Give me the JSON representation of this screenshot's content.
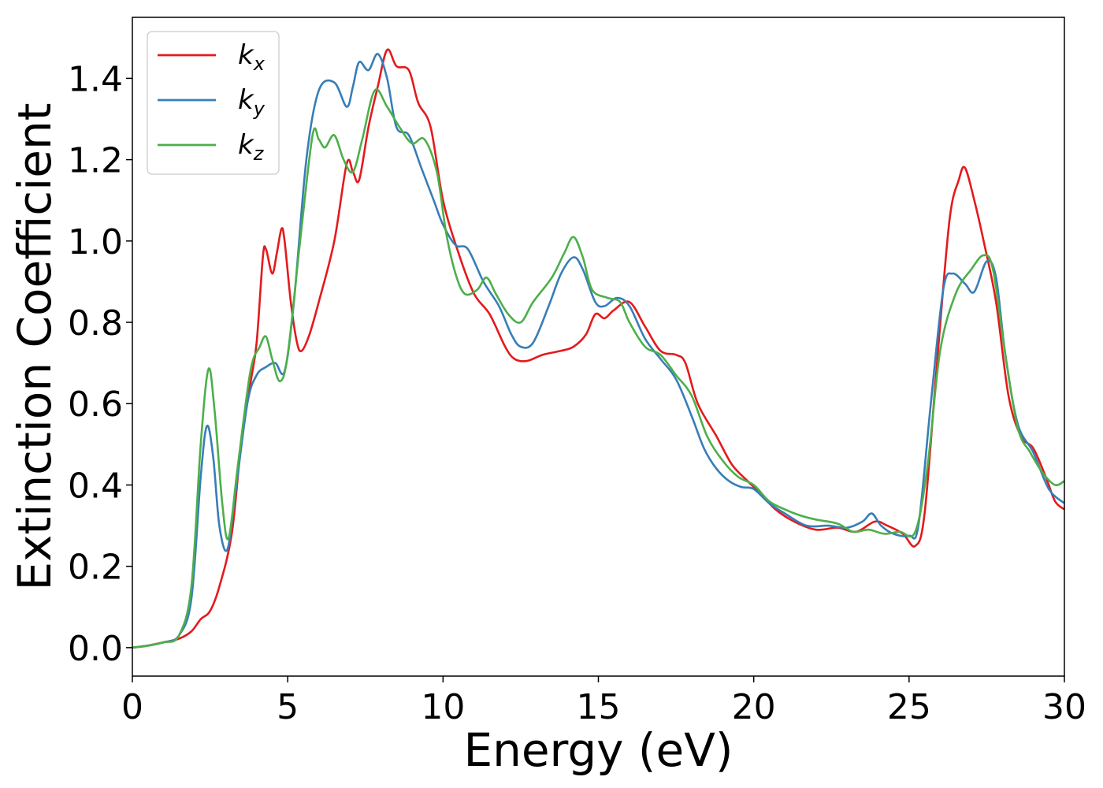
{
  "chart_data": {
    "type": "line",
    "xlabel": "Energy (eV)",
    "ylabel": "Extinction Coefficient",
    "xlim": [
      0,
      30
    ],
    "ylim": [
      -0.07,
      1.55
    ],
    "xticks": [
      "0",
      "5",
      "10",
      "15",
      "20",
      "25",
      "30"
    ],
    "yticks": [
      "0.0",
      "0.2",
      "0.4",
      "0.6",
      "0.8",
      "1.0",
      "1.2",
      "1.4"
    ],
    "grid": false,
    "legend_position": "top-left",
    "series": [
      {
        "name": "k",
        "subscript": "x",
        "color": "#e41a1c",
        "points": [
          [
            0,
            0
          ],
          [
            0.5,
            0.005
          ],
          [
            1,
            0.013
          ],
          [
            1.5,
            0.022
          ],
          [
            1.9,
            0.04
          ],
          [
            2.2,
            0.07
          ],
          [
            2.5,
            0.09
          ],
          [
            2.8,
            0.15
          ],
          [
            3.2,
            0.28
          ],
          [
            3.5,
            0.5
          ],
          [
            3.8,
            0.65
          ],
          [
            4,
            0.75
          ],
          [
            4.2,
            0.96
          ],
          [
            4.3,
            0.98
          ],
          [
            4.5,
            0.92
          ],
          [
            4.65,
            0.97
          ],
          [
            4.8,
            1.03
          ],
          [
            4.9,
            1.0
          ],
          [
            5.1,
            0.85
          ],
          [
            5.3,
            0.75
          ],
          [
            5.45,
            0.73
          ],
          [
            5.7,
            0.77
          ],
          [
            6,
            0.85
          ],
          [
            6.5,
            1.0
          ],
          [
            6.9,
            1.19
          ],
          [
            7.1,
            1.17
          ],
          [
            7.3,
            1.15
          ],
          [
            7.6,
            1.28
          ],
          [
            7.9,
            1.38
          ],
          [
            8.2,
            1.47
          ],
          [
            8.5,
            1.43
          ],
          [
            8.9,
            1.42
          ],
          [
            9.2,
            1.34
          ],
          [
            9.6,
            1.28
          ],
          [
            10,
            1.1
          ],
          [
            10.5,
            0.97
          ],
          [
            11,
            0.87
          ],
          [
            11.5,
            0.82
          ],
          [
            12,
            0.74
          ],
          [
            12.3,
            0.71
          ],
          [
            12.7,
            0.705
          ],
          [
            13.2,
            0.72
          ],
          [
            13.8,
            0.73
          ],
          [
            14.2,
            0.74
          ],
          [
            14.6,
            0.77
          ],
          [
            14.9,
            0.82
          ],
          [
            15.2,
            0.81
          ],
          [
            15.5,
            0.83
          ],
          [
            16,
            0.85
          ],
          [
            16.5,
            0.79
          ],
          [
            17,
            0.73
          ],
          [
            17.5,
            0.72
          ],
          [
            17.8,
            0.7
          ],
          [
            18.2,
            0.6
          ],
          [
            18.8,
            0.52
          ],
          [
            19.3,
            0.45
          ],
          [
            19.8,
            0.41
          ],
          [
            20.2,
            0.38
          ],
          [
            20.7,
            0.34
          ],
          [
            21.3,
            0.31
          ],
          [
            22,
            0.29
          ],
          [
            22.7,
            0.295
          ],
          [
            23.3,
            0.285
          ],
          [
            23.9,
            0.31
          ],
          [
            24.3,
            0.3
          ],
          [
            24.8,
            0.28
          ],
          [
            25.2,
            0.25
          ],
          [
            25.5,
            0.33
          ],
          [
            25.9,
            0.7
          ],
          [
            26.3,
            1.05
          ],
          [
            26.6,
            1.15
          ],
          [
            26.8,
            1.18
          ],
          [
            27.1,
            1.1
          ],
          [
            27.4,
            1.0
          ],
          [
            27.8,
            0.85
          ],
          [
            28.2,
            0.62
          ],
          [
            28.6,
            0.52
          ],
          [
            29,
            0.49
          ],
          [
            29.4,
            0.42
          ],
          [
            29.7,
            0.36
          ],
          [
            30,
            0.34
          ]
        ]
      },
      {
        "name": "k",
        "subscript": "y",
        "color": "#377eb8",
        "points": [
          [
            0,
            0
          ],
          [
            0.5,
            0.005
          ],
          [
            1,
            0.013
          ],
          [
            1.5,
            0.03
          ],
          [
            1.9,
            0.12
          ],
          [
            2.2,
            0.42
          ],
          [
            2.4,
            0.545
          ],
          [
            2.6,
            0.47
          ],
          [
            2.8,
            0.3
          ],
          [
            3.05,
            0.24
          ],
          [
            3.3,
            0.37
          ],
          [
            3.7,
            0.6
          ],
          [
            4,
            0.67
          ],
          [
            4.3,
            0.69
          ],
          [
            4.6,
            0.7
          ],
          [
            4.9,
            0.68
          ],
          [
            5.2,
            0.85
          ],
          [
            5.6,
            1.2
          ],
          [
            6,
            1.37
          ],
          [
            6.5,
            1.39
          ],
          [
            6.9,
            1.33
          ],
          [
            7.1,
            1.38
          ],
          [
            7.3,
            1.44
          ],
          [
            7.6,
            1.42
          ],
          [
            7.9,
            1.46
          ],
          [
            8.2,
            1.4
          ],
          [
            8.5,
            1.28
          ],
          [
            8.9,
            1.26
          ],
          [
            9.3,
            1.18
          ],
          [
            9.7,
            1.1
          ],
          [
            10,
            1.04
          ],
          [
            10.4,
            0.99
          ],
          [
            10.8,
            0.98
          ],
          [
            11.3,
            0.9
          ],
          [
            11.8,
            0.84
          ],
          [
            12.2,
            0.77
          ],
          [
            12.5,
            0.74
          ],
          [
            12.9,
            0.75
          ],
          [
            13.4,
            0.84
          ],
          [
            13.8,
            0.92
          ],
          [
            14.2,
            0.96
          ],
          [
            14.5,
            0.93
          ],
          [
            14.9,
            0.85
          ],
          [
            15.2,
            0.84
          ],
          [
            15.6,
            0.86
          ],
          [
            16,
            0.84
          ],
          [
            16.5,
            0.76
          ],
          [
            17,
            0.71
          ],
          [
            17.5,
            0.66
          ],
          [
            18,
            0.57
          ],
          [
            18.4,
            0.49
          ],
          [
            18.8,
            0.44
          ],
          [
            19.2,
            0.41
          ],
          [
            19.6,
            0.395
          ],
          [
            20,
            0.39
          ],
          [
            20.5,
            0.355
          ],
          [
            21,
            0.33
          ],
          [
            21.7,
            0.3
          ],
          [
            22.4,
            0.3
          ],
          [
            23,
            0.295
          ],
          [
            23.5,
            0.31
          ],
          [
            23.8,
            0.33
          ],
          [
            24.1,
            0.3
          ],
          [
            24.5,
            0.28
          ],
          [
            25,
            0.275
          ],
          [
            25.3,
            0.3
          ],
          [
            25.7,
            0.6
          ],
          [
            26.1,
            0.88
          ],
          [
            26.4,
            0.92
          ],
          [
            26.8,
            0.895
          ],
          [
            27.1,
            0.875
          ],
          [
            27.5,
            0.95
          ],
          [
            27.8,
            0.91
          ],
          [
            28.1,
            0.72
          ],
          [
            28.5,
            0.55
          ],
          [
            29,
            0.48
          ],
          [
            29.5,
            0.39
          ],
          [
            30,
            0.355
          ]
        ]
      },
      {
        "name": "k",
        "subscript": "z",
        "color": "#4daf4a",
        "points": [
          [
            0,
            0
          ],
          [
            0.5,
            0.005
          ],
          [
            1,
            0.013
          ],
          [
            1.5,
            0.03
          ],
          [
            1.9,
            0.15
          ],
          [
            2.2,
            0.5
          ],
          [
            2.45,
            0.685
          ],
          [
            2.65,
            0.58
          ],
          [
            2.9,
            0.35
          ],
          [
            3.1,
            0.27
          ],
          [
            3.4,
            0.45
          ],
          [
            3.8,
            0.68
          ],
          [
            4.1,
            0.74
          ],
          [
            4.3,
            0.765
          ],
          [
            4.5,
            0.71
          ],
          [
            4.75,
            0.655
          ],
          [
            5,
            0.72
          ],
          [
            5.4,
            1.0
          ],
          [
            5.8,
            1.26
          ],
          [
            6,
            1.25
          ],
          [
            6.2,
            1.23
          ],
          [
            6.5,
            1.26
          ],
          [
            6.8,
            1.2
          ],
          [
            7.1,
            1.17
          ],
          [
            7.4,
            1.25
          ],
          [
            7.8,
            1.37
          ],
          [
            8.2,
            1.33
          ],
          [
            8.6,
            1.28
          ],
          [
            9,
            1.24
          ],
          [
            9.4,
            1.25
          ],
          [
            9.8,
            1.17
          ],
          [
            10.1,
            1.02
          ],
          [
            10.4,
            0.92
          ],
          [
            10.7,
            0.87
          ],
          [
            11.1,
            0.88
          ],
          [
            11.4,
            0.91
          ],
          [
            11.7,
            0.87
          ],
          [
            12.1,
            0.82
          ],
          [
            12.5,
            0.8
          ],
          [
            12.9,
            0.85
          ],
          [
            13.5,
            0.91
          ],
          [
            13.9,
            0.97
          ],
          [
            14.2,
            1.01
          ],
          [
            14.5,
            0.96
          ],
          [
            14.8,
            0.88
          ],
          [
            15.3,
            0.86
          ],
          [
            15.7,
            0.85
          ],
          [
            16,
            0.8
          ],
          [
            16.5,
            0.74
          ],
          [
            17,
            0.72
          ],
          [
            17.5,
            0.67
          ],
          [
            18,
            0.62
          ],
          [
            18.5,
            0.52
          ],
          [
            19,
            0.46
          ],
          [
            19.5,
            0.42
          ],
          [
            20,
            0.4
          ],
          [
            20.5,
            0.36
          ],
          [
            21,
            0.34
          ],
          [
            21.5,
            0.325
          ],
          [
            22,
            0.315
          ],
          [
            22.7,
            0.305
          ],
          [
            23.2,
            0.285
          ],
          [
            23.7,
            0.29
          ],
          [
            24.2,
            0.28
          ],
          [
            24.7,
            0.285
          ],
          [
            25.2,
            0.285
          ],
          [
            25.6,
            0.45
          ],
          [
            26,
            0.73
          ],
          [
            26.5,
            0.87
          ],
          [
            27,
            0.93
          ],
          [
            27.4,
            0.965
          ],
          [
            27.7,
            0.93
          ],
          [
            28.1,
            0.72
          ],
          [
            28.5,
            0.54
          ],
          [
            28.9,
            0.48
          ],
          [
            29.3,
            0.43
          ],
          [
            29.7,
            0.4
          ],
          [
            30,
            0.41
          ]
        ]
      }
    ]
  }
}
